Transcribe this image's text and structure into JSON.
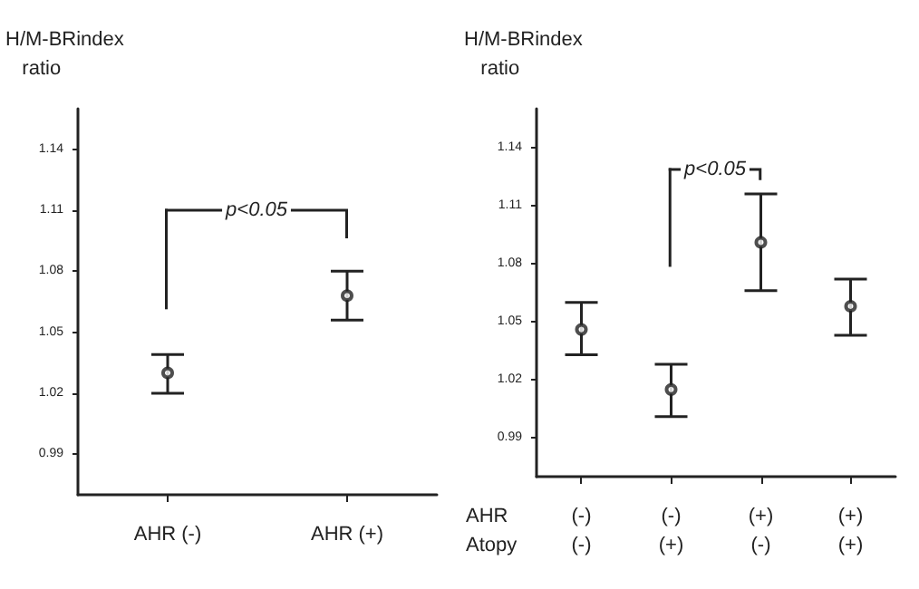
{
  "chart_data": [
    {
      "type": "scatter",
      "ylabel": "H/M-BRindex ratio",
      "categories": [
        "AHR (-)",
        "AHR (+)"
      ],
      "series": [
        {
          "color": "#222222",
          "values": [
            1.03,
            1.068
          ],
          "errors": [
            [
              1.02,
              1.039
            ],
            [
              1.056,
              1.08
            ]
          ]
        }
      ],
      "ylim": [
        0.97,
        1.16
      ],
      "yticks": [
        0.99,
        1.02,
        1.05,
        1.08,
        1.11,
        1.14
      ],
      "grid": false,
      "marker": "circle",
      "annotations": [
        "p<0.05"
      ]
    },
    {
      "type": "scatter",
      "ylabel": "H/M-BRindex ratio",
      "xlabel": "AHR\nAtopy",
      "categories": [
        "(-)\n(-)",
        "(-)\n(+)",
        "(+)\n(-)",
        "(+)\n(+)"
      ],
      "series": [
        {
          "color": "#222222",
          "values": [
            1.046,
            1.015,
            1.091,
            1.058
          ],
          "errors": [
            [
              1.033,
              1.06
            ],
            [
              1.001,
              1.028
            ],
            [
              1.066,
              1.116
            ],
            [
              1.043,
              1.072
            ]
          ]
        }
      ],
      "ylim": [
        0.97,
        1.16
      ],
      "yticks": [
        0.99,
        1.02,
        1.05,
        1.08,
        1.11,
        1.14
      ],
      "grid": false,
      "marker": "circle",
      "annotations": [
        "p<0.05"
      ]
    }
  ]
}
